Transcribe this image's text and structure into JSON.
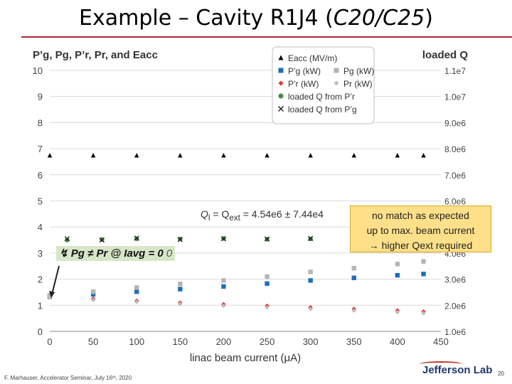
{
  "title": {
    "prefix": "Example – Cavity R1J4 (",
    "italic": "C20/C25",
    "suffix": ")"
  },
  "colors": {
    "title_rule": "#b22234",
    "eacc": "#000000",
    "pprime_g": "#1f6fb5",
    "pg": "#b5b5b5",
    "pprime_r": "#e8312c",
    "pr": "#bdbdbd",
    "ql_pr": "#3f8f3a",
    "ql_pg": "#1a2a1a"
  },
  "chart_data": {
    "type": "scatter",
    "xlabel": "linac beam current (μA)",
    "ylabel_left": "P’g, Pg, P’r, Pr, and Eacc",
    "ylabel_right": "loaded Q",
    "xlim": [
      0,
      450
    ],
    "ylim_left": [
      0,
      10
    ],
    "ylim_right": [
      1000000.0,
      11000000.0
    ],
    "x_ticks": [
      "0",
      "50",
      "100",
      "150",
      "200",
      "250",
      "300",
      "350",
      "400",
      "450"
    ],
    "y_left_ticks": [
      "0",
      "1",
      "2",
      "3",
      "4",
      "5",
      "6",
      "7",
      "8",
      "9",
      "10"
    ],
    "y_right_ticks": [
      "1.0e6",
      "2.0e6",
      "3.0e6",
      "4.0e6",
      "5.0e6",
      "6.0e6",
      "7.0e6",
      "8.0e6",
      "9.0e6",
      "1.0e7",
      "1.1e7"
    ],
    "grid": "horizontal",
    "legend_position": "top-center",
    "series": [
      {
        "name": "Eacc (MV/m)",
        "axis": "left",
        "marker": "triangle",
        "color": "eacc",
        "x": [
          0,
          50,
          100,
          150,
          200,
          250,
          300,
          350,
          400,
          430
        ],
        "values": [
          6.75,
          6.75,
          6.75,
          6.75,
          6.75,
          6.75,
          6.75,
          6.75,
          6.75,
          6.75
        ]
      },
      {
        "name": "P’g (kW)",
        "axis": "left",
        "marker": "square",
        "color": "pprime_g",
        "x": [
          0,
          50,
          100,
          150,
          200,
          250,
          300,
          350,
          400,
          430
        ],
        "values": [
          1.33,
          1.42,
          1.52,
          1.62,
          1.72,
          1.83,
          1.95,
          2.05,
          2.15,
          2.2
        ]
      },
      {
        "name": "Pg (kW)",
        "axis": "left",
        "marker": "square",
        "color": "pg",
        "x": [
          0,
          50,
          100,
          150,
          200,
          250,
          300,
          350,
          400,
          430
        ],
        "values": [
          1.38,
          1.52,
          1.68,
          1.82,
          1.95,
          2.1,
          2.28,
          2.42,
          2.58,
          2.68
        ]
      },
      {
        "name": "P’r (kW)",
        "axis": "left",
        "marker": "diamond",
        "color": "pprime_r",
        "x": [
          0,
          50,
          100,
          150,
          200,
          250,
          300,
          350,
          400,
          430
        ],
        "values": [
          1.3,
          1.25,
          1.17,
          1.1,
          1.04,
          0.98,
          0.92,
          0.86,
          0.8,
          0.76
        ]
      },
      {
        "name": "Pr (kW)",
        "axis": "left",
        "marker": "diamond",
        "color": "pr",
        "x": [
          0,
          50,
          100,
          150,
          200,
          250,
          300,
          350,
          400,
          430
        ],
        "values": [
          1.3,
          1.2,
          1.13,
          1.05,
          0.98,
          0.92,
          0.86,
          0.8,
          0.74,
          0.7
        ]
      },
      {
        "name": "loaded Q from P’r",
        "axis": "right",
        "marker": "circle",
        "color": "ql_pr",
        "x": [
          20,
          60,
          100,
          150,
          200,
          250,
          300,
          350,
          400,
          425
        ],
        "values": [
          4500000.0,
          4520000.0,
          4550000.0,
          4540000.0,
          4560000.0,
          4530000.0,
          4540000.0,
          4550000.0,
          4540000.0,
          4550000.0
        ]
      },
      {
        "name": "loaded Q from P’g",
        "axis": "right",
        "marker": "cross",
        "color": "ql_pg",
        "x": [
          20,
          60,
          100,
          150,
          200,
          250,
          300,
          350,
          400,
          425
        ],
        "values": [
          4550000.0,
          4500000.0,
          4570000.0,
          4520000.0,
          4550000.0,
          4540000.0,
          4560000.0,
          4530000.0,
          4550000.0,
          4540000.0
        ]
      }
    ],
    "annotations": {
      "ql_prefix": "Q",
      "ql_sub": "l",
      "ql_mid": " = Q",
      "ql_sub2": "ext",
      "ql_value": " = 4.54e6 ± 7.44e4",
      "callout_lines": [
        "no match as expected",
        "up to max. beam current",
        "→ higher Qext required"
      ],
      "pg_note": "↯ Pg ≠ Pr @ Iavg = 0",
      "pg_note_tail": "0"
    }
  },
  "footer": "F. Marhauser, Accelerator Seminar, July 16ᵗʰ, 2020",
  "logo": "Jefferson Lab",
  "page_number": "20"
}
